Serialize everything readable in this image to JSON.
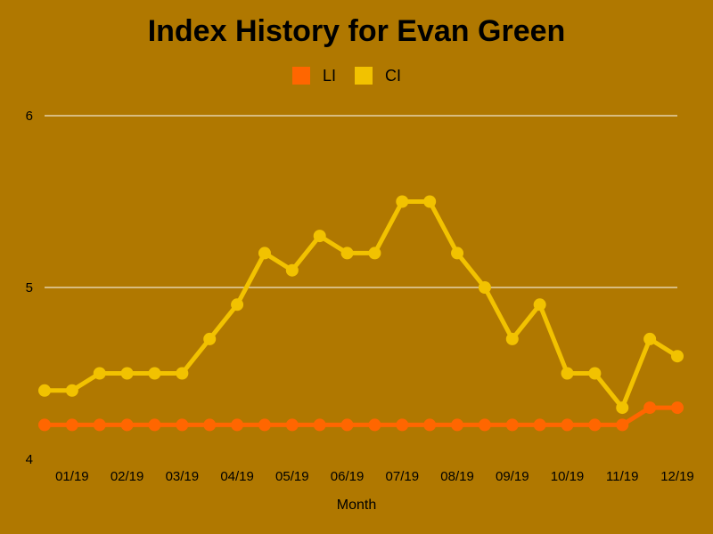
{
  "chart_data": {
    "type": "line",
    "title": "Index History for Evan Green",
    "xlabel": "Month",
    "ylabel": "",
    "ylim": [
      4,
      6
    ],
    "yticks": [
      4,
      5,
      6
    ],
    "grid": true,
    "legend_position": "top-center",
    "background_color": "#b07800",
    "x_tick_labels": [
      "01/19",
      "02/19",
      "03/19",
      "04/19",
      "05/19",
      "06/19",
      "07/19",
      "08/19",
      "09/19",
      "10/19",
      "11/19",
      "12/19"
    ],
    "x": [
      "01/19",
      "01/19",
      "02/19",
      "02/19",
      "03/19",
      "03/19",
      "04/19",
      "04/19",
      "05/19",
      "05/19",
      "06/19",
      "06/19",
      "07/19",
      "07/19",
      "08/19",
      "08/19",
      "09/19",
      "09/19",
      "10/19",
      "10/19",
      "11/19",
      "11/19",
      "12/19",
      "12/19"
    ],
    "series": [
      {
        "name": "LI",
        "color": "#ff6600",
        "values": [
          4.2,
          4.2,
          4.2,
          4.2,
          4.2,
          4.2,
          4.2,
          4.2,
          4.2,
          4.2,
          4.2,
          4.2,
          4.2,
          4.2,
          4.2,
          4.2,
          4.2,
          4.2,
          4.2,
          4.2,
          4.2,
          4.2,
          4.3,
          4.3
        ]
      },
      {
        "name": "CI",
        "color": "#f2c200",
        "values": [
          4.4,
          4.4,
          4.5,
          4.5,
          4.5,
          4.5,
          4.7,
          4.9,
          5.2,
          5.1,
          5.3,
          5.2,
          5.2,
          5.5,
          5.5,
          5.2,
          5.0,
          4.7,
          4.9,
          4.5,
          4.5,
          4.3,
          4.7,
          4.6
        ]
      }
    ]
  }
}
